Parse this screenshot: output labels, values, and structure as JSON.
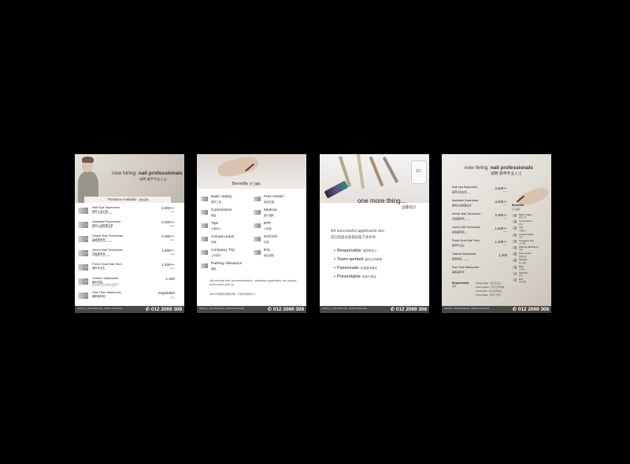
{
  "footer": {
    "locations": "Seribong · Kota Damansara · Mutiara Damansara",
    "phone": "012 2069 308"
  },
  "poster1": {
    "title_prefix": "now hiring:",
    "title_bold": "nail professionals",
    "title_cn": "诚聘 美甲专业人士",
    "ribbon": "Positions Available",
    "ribbon_cn": "职位空缺",
    "positions": [
      {
        "num": "1",
        "title": "Nail Spa Supervisor",
        "cn": "美甲沙龙主管",
        "desc": "min. 5 years experience",
        "salary": "2,500++",
        "salary_sub": "basic"
      },
      {
        "num": "2",
        "title": "Assistant Supervisor",
        "cn": "美甲沙龙助理主管",
        "desc": "min. 3 years experience",
        "salary": "2,000++",
        "salary_sub": "basic"
      },
      {
        "num": "3",
        "title": "Senior Nail Technician",
        "cn": "高级美甲师",
        "desc": "min. 2 years experience",
        "salary": "2,000++",
        "salary_sub": "basic"
      },
      {
        "num": "4",
        "title": "Junior Nail Technician",
        "cn": "初级美甲师",
        "desc": "1-2 years experience",
        "salary": "1,600++",
        "salary_sub": "basic"
      },
      {
        "num": "5",
        "title": "Fresh Grad Nail Tech.",
        "cn": "美甲毕业生",
        "desc": "",
        "salary": "1,400++",
        "salary_sub": "basic"
      },
      {
        "num": "6",
        "title": "Trainee Manicurist",
        "cn": "美甲学徒",
        "desc": "no experience needed 无须经验",
        "desc2": "aged 16 and above 16 岁以上",
        "salary": "1,200",
        "salary_sub": ""
      },
      {
        "num": "7",
        "title": "Part-Time Manicurist",
        "cn": "兼职美甲师",
        "desc": "",
        "salary": "negotiable",
        "salary_sub": "面议"
      }
    ]
  },
  "poster2": {
    "heading": "Benefits",
    "heading_cn": "员工福利",
    "benefits_left": [
      {
        "title": "Basic Salary",
        "cn": "基本工资"
      },
      {
        "title": "Commission",
        "cn": "佣金"
      },
      {
        "title": "Tips",
        "cn": "小费收入"
      },
      {
        "title": "Annual Leave",
        "cn": "年假"
      },
      {
        "title": "Company Trip",
        "cn": "公司旅行"
      },
      {
        "title": "Parking Allowance",
        "cn": "津贴"
      }
    ],
    "benefits_right": [
      {
        "title": "Free Hostel",
        "cn": "免费住宿"
      },
      {
        "title": "Medical",
        "cn": "医疗福利"
      },
      {
        "title": "EPF",
        "cn": "公积金"
      },
      {
        "title": "SOCSO",
        "cn": "社保"
      },
      {
        "title": "EIS",
        "cn": "就业保险"
      }
    ],
    "note": "We provide free accommodation, outstation applicants are always welcome to join us.",
    "note_cn": "本公司有提供免费住宿，欢迎外坡者加入。"
  },
  "poster3": {
    "title": "one more thing...",
    "title_cn": "温馨提示",
    "intro": "All successful applicants are:",
    "intro_cn": "成功的面试者都具备下述条件:",
    "qualities": [
      {
        "en": "Responsible",
        "cn": "强烈责任心"
      },
      {
        "en": "Team-spirited",
        "cn": "团队合作精神"
      },
      {
        "en": "Passionate",
        "cn": "热爱美甲事业"
      },
      {
        "en": "Presentable",
        "cn": "形象气质佳"
      }
    ],
    "bottle_label": "ZO"
  },
  "poster4": {
    "title_prefix": "now hiring:",
    "title_bold": "nail professionals",
    "title_cn": "诚聘 美甲专业人士",
    "positions": [
      {
        "title": "Nail Spa Supervisor",
        "cn": "美甲沙龙主管",
        "desc": "min. 5 years experience",
        "salary": "2,500++",
        "salary_sub": "basic"
      },
      {
        "title": "Assistant Supervisor",
        "cn": "美甲沙龙助理主管",
        "desc": "min. 3 years experience",
        "salary": "2,000++",
        "salary_sub": "basic"
      },
      {
        "title": "Senior Nail Technician",
        "cn": "高级美甲师",
        "desc": "min. 2 years experience",
        "salary": "2,000++",
        "salary_sub": "basic"
      },
      {
        "title": "Junior Nail Technician",
        "cn": "初级美甲师",
        "desc": "1-2 years experience",
        "salary": "1,600++",
        "salary_sub": "basic"
      },
      {
        "title": "Fresh Grad Nail Tech.",
        "cn": "美甲毕业生",
        "desc": "",
        "salary": "1,400++",
        "salary_sub": "basic"
      },
      {
        "title": "Trainee Manicurist",
        "cn": "美甲学徒",
        "desc": "no experience needed",
        "salary": "1,200",
        "salary_sub": ""
      },
      {
        "title": "Part-Time Manicurist",
        "cn": "兼职美甲师",
        "desc": "",
        "salary": "",
        "salary_sub": ""
      }
    ],
    "benefits_heading": "Benefits",
    "benefits_heading_cn": "员工福利",
    "benefits": [
      {
        "title": "Basic Salary",
        "cn": "基本工资"
      },
      {
        "title": "Commission",
        "cn": "佣金"
      },
      {
        "title": "Tips",
        "cn": "小费收入"
      },
      {
        "title": "Annual Leave",
        "cn": "年假"
      },
      {
        "title": "Company Trip",
        "cn": "公司旅行"
      },
      {
        "title": "Parking Allowance",
        "cn": "津贴"
      },
      {
        "title": "Free Hostel",
        "cn": "免费住宿"
      },
      {
        "title": "Medical",
        "cn": "医疗福利"
      },
      {
        "title": "EPF",
        "cn": "公积金"
      },
      {
        "title": "SOCSO",
        "cn": "社保"
      },
      {
        "title": "EIS",
        "cn": "就业保险"
      }
    ],
    "requirements_label": "Requirements",
    "requirements_cn": "要求",
    "requirements": [
      {
        "en": "Responsible",
        "cn": "强烈责任心"
      },
      {
        "en": "Team-spirited",
        "cn": "团队合作精神"
      },
      {
        "en": "Passionate",
        "cn": "热爱美甲事业"
      },
      {
        "en": "Presentable",
        "cn": "形象气质佳"
      }
    ]
  }
}
